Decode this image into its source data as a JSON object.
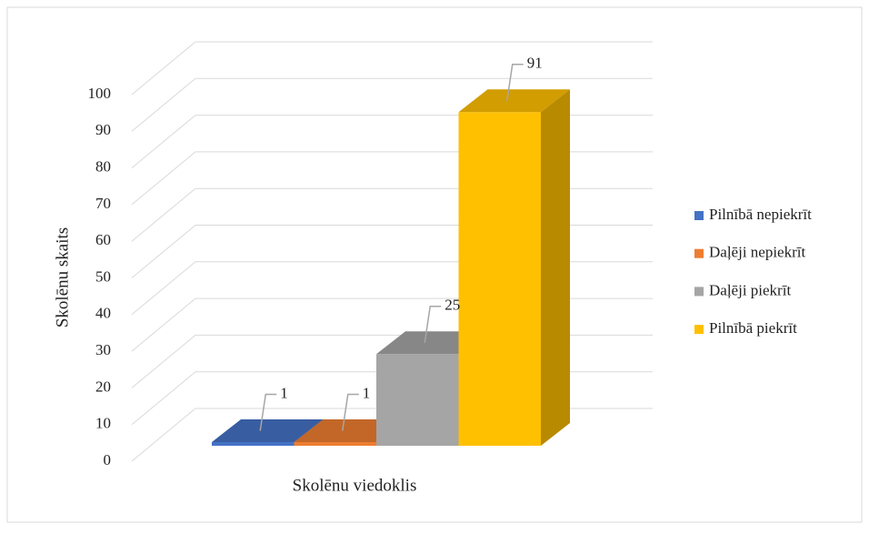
{
  "chart_data": {
    "type": "bar3d",
    "y_label": "Skolēnu skaits",
    "categories": [
      "Skolēnu viedoklis"
    ],
    "series": [
      {
        "name": "Pilnībā nepiekrīt",
        "color": "#4472c4",
        "values": [
          1
        ]
      },
      {
        "name": "Daļēji nepiekrīt",
        "color": "#ed7d31",
        "values": [
          1
        ]
      },
      {
        "name": "Daļēji piekrīt",
        "color": "#a5a5a5",
        "values": [
          25
        ]
      },
      {
        "name": "Pilnībā piekrīt",
        "color": "#ffc000",
        "values": [
          91
        ]
      }
    ],
    "ylim": [
      0,
      100
    ],
    "yticks": [
      0,
      10,
      20,
      30,
      40,
      50,
      60,
      70,
      80,
      90,
      100
    ],
    "grid": true,
    "legend": "right"
  }
}
